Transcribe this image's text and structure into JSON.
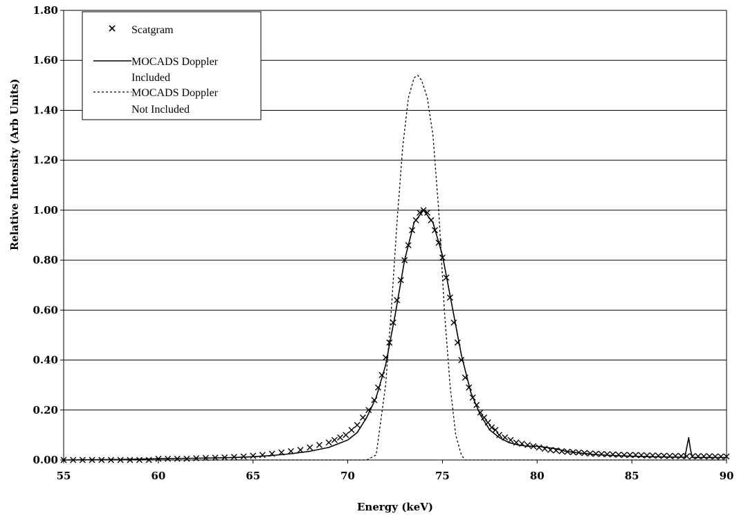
{
  "chart_data": {
    "type": "line",
    "title": "",
    "xlabel": "Energy (keV)",
    "ylabel": "Relative Intensity (Arb Units)",
    "xlim": [
      55,
      90
    ],
    "ylim": [
      0,
      1.8
    ],
    "x_ticks": [
      "55",
      "60",
      "65",
      "70",
      "75",
      "80",
      "85",
      "90"
    ],
    "y_ticks": [
      "0.00",
      "0.20",
      "0.40",
      "0.60",
      "0.80",
      "1.00",
      "1.20",
      "1.40",
      "1.60",
      "1.80"
    ],
    "grid": "horizontal",
    "legend_position": "top-left",
    "legend": [
      {
        "key": "scatgram",
        "line1": "Scatgram",
        "line2": ""
      },
      {
        "key": "mocads_doppler",
        "line1": "MOCADS Doppler",
        "line2": "Included"
      },
      {
        "key": "mocads_no_doppler",
        "line1": "MOCADS Doppler",
        "line2": "Not Included"
      }
    ],
    "series": [
      {
        "key": "scatgram",
        "style": "x-markers",
        "x": [
          55,
          55.5,
          56,
          56.5,
          57,
          57.5,
          58,
          58.5,
          59,
          59.5,
          60,
          60.5,
          61,
          61.5,
          62,
          62.5,
          63,
          63.5,
          64,
          64.5,
          65,
          65.5,
          66,
          66.5,
          67,
          67.5,
          68,
          68.5,
          69,
          69.3,
          69.6,
          69.9,
          70.2,
          70.5,
          70.8,
          71.1,
          71.4,
          71.6,
          71.8,
          72,
          72.2,
          72.4,
          72.6,
          72.8,
          73,
          73.2,
          73.4,
          73.6,
          73.8,
          74,
          74.2,
          74.4,
          74.6,
          74.8,
          75,
          75.2,
          75.4,
          75.6,
          75.8,
          76,
          76.2,
          76.4,
          76.6,
          76.8,
          77,
          77.2,
          77.4,
          77.6,
          77.8,
          78,
          78.3,
          78.6,
          78.9,
          79.2,
          79.5,
          79.8,
          80.1,
          80.4,
          80.7,
          81,
          81.3,
          81.6,
          81.9,
          82.2,
          82.5,
          82.8,
          83.1,
          83.4,
          83.7,
          84,
          84.3,
          84.6,
          84.9,
          85.2,
          85.5,
          85.8,
          86.1,
          86.4,
          86.7,
          87,
          87.3,
          87.6,
          87.9,
          88.2,
          88.5,
          88.8,
          89.1,
          89.4,
          89.7,
          90
        ],
        "y": [
          0,
          0,
          0,
          0,
          0,
          0,
          0,
          0,
          0,
          0,
          0.005,
          0.005,
          0.005,
          0.005,
          0.007,
          0.008,
          0.009,
          0.01,
          0.012,
          0.014,
          0.017,
          0.02,
          0.025,
          0.03,
          0.035,
          0.04,
          0.05,
          0.06,
          0.07,
          0.08,
          0.09,
          0.1,
          0.12,
          0.14,
          0.17,
          0.2,
          0.24,
          0.29,
          0.34,
          0.41,
          0.47,
          0.55,
          0.64,
          0.72,
          0.8,
          0.86,
          0.92,
          0.96,
          0.99,
          1.0,
          0.99,
          0.96,
          0.92,
          0.87,
          0.81,
          0.73,
          0.65,
          0.55,
          0.47,
          0.4,
          0.33,
          0.29,
          0.25,
          0.22,
          0.19,
          0.17,
          0.15,
          0.13,
          0.12,
          0.1,
          0.09,
          0.08,
          0.07,
          0.065,
          0.06,
          0.055,
          0.05,
          0.045,
          0.04,
          0.038,
          0.035,
          0.033,
          0.031,
          0.03,
          0.028,
          0.026,
          0.025,
          0.024,
          0.023,
          0.022,
          0.021,
          0.02,
          0.02,
          0.02,
          0.019,
          0.018,
          0.018,
          0.017,
          0.017,
          0.016,
          0.016,
          0.016,
          0.015,
          0.015,
          0.015,
          0.015,
          0.015,
          0.014,
          0.014,
          0.014
        ]
      },
      {
        "key": "mocads_doppler",
        "style": "solid",
        "x": [
          55,
          58,
          60,
          62,
          64,
          65,
          66,
          67,
          68,
          69,
          70,
          70.5,
          71,
          71.5,
          72,
          72.5,
          73,
          73.5,
          74,
          74.5,
          75,
          75.5,
          76,
          76.5,
          77,
          77.5,
          78,
          78.5,
          79,
          79.5,
          80,
          80.5,
          81,
          81.5,
          82,
          83,
          84,
          85,
          86,
          87,
          87.8,
          87.9,
          88,
          88.1,
          88.2,
          89,
          90
        ],
        "y": [
          0,
          0.002,
          0.005,
          0.007,
          0.01,
          0.013,
          0.018,
          0.025,
          0.035,
          0.05,
          0.08,
          0.11,
          0.17,
          0.25,
          0.38,
          0.58,
          0.8,
          0.95,
          1.0,
          0.95,
          0.82,
          0.62,
          0.42,
          0.27,
          0.18,
          0.12,
          0.09,
          0.07,
          0.06,
          0.055,
          0.055,
          0.05,
          0.045,
          0.035,
          0.03,
          0.022,
          0.018,
          0.015,
          0.013,
          0.012,
          0.011,
          0.05,
          0.09,
          0.04,
          0.01,
          0.01,
          0.01
        ]
      },
      {
        "key": "mocads_no_doppler",
        "style": "dotted",
        "x": [
          55,
          71,
          71.5,
          72,
          72.3,
          72.6,
          72.9,
          73.2,
          73.5,
          73.7,
          73.9,
          74.2,
          74.5,
          74.8,
          75.1,
          75.4,
          75.7,
          76,
          76.2,
          90
        ],
        "y": [
          0,
          0,
          0.02,
          0.3,
          0.6,
          0.95,
          1.25,
          1.45,
          1.53,
          1.54,
          1.52,
          1.45,
          1.3,
          1.0,
          0.6,
          0.3,
          0.1,
          0.02,
          0,
          0
        ]
      }
    ]
  }
}
